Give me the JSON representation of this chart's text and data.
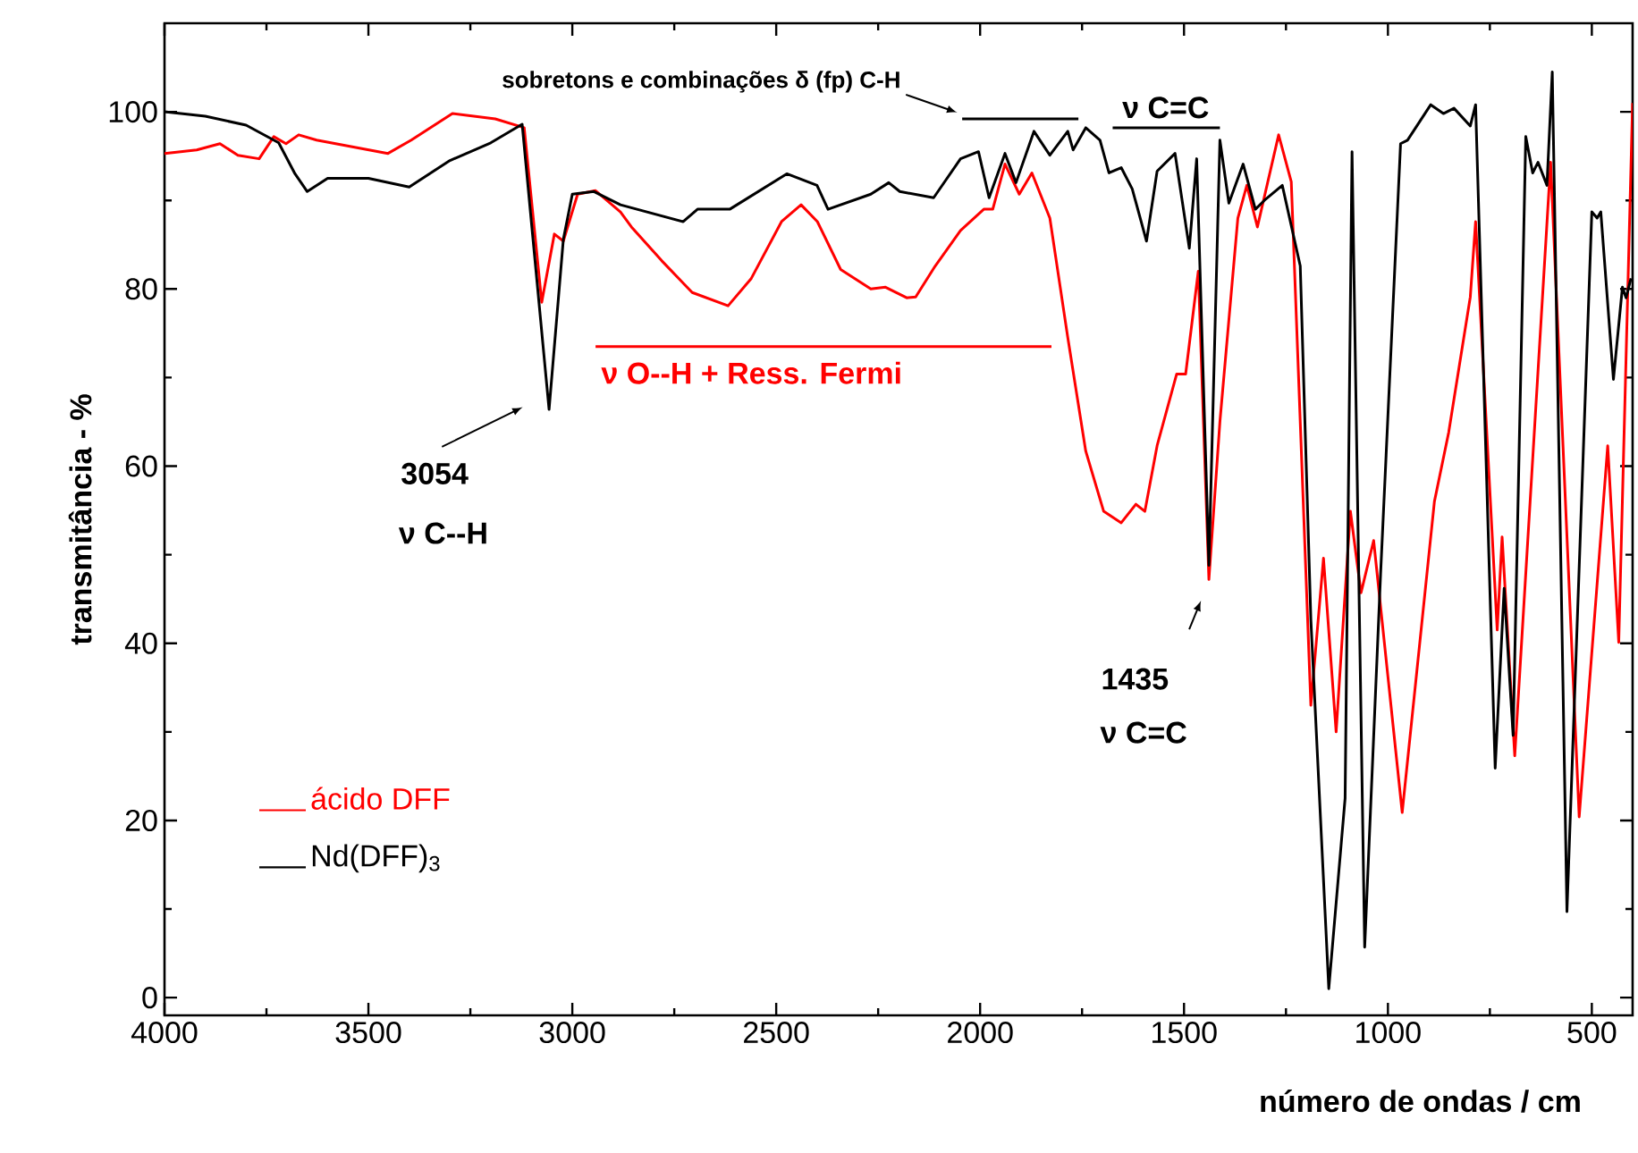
{
  "chart_data": {
    "type": "line",
    "xlabel": "número de ondas / cm",
    "ylabel": "transmitância - %",
    "xlim": [
      4000,
      400
    ],
    "ylim": [
      -2,
      110
    ],
    "xticks": [
      4000,
      3500,
      3000,
      2500,
      2000,
      1500,
      1000,
      500
    ],
    "yticks": [
      0,
      20,
      40,
      60,
      80,
      100
    ],
    "legend": "bottom left",
    "marker": "none",
    "line_style": "solid",
    "grid": false,
    "series": [
      {
        "name": "ácido DFF",
        "color": "#ff0000",
        "x": [
          4000,
          3921,
          3864,
          3820,
          3768,
          3732,
          3702,
          3671,
          3627,
          3452,
          3395,
          3294,
          3189,
          3118,
          3075,
          3044,
          3022,
          2987,
          2943,
          2882,
          2855,
          2781,
          2706,
          2618,
          2561,
          2487,
          2439,
          2399,
          2342,
          2268,
          2232,
          2180,
          2158,
          2110,
          2048,
          1991,
          1969,
          1939,
          1904,
          1873,
          1829,
          1785,
          1741,
          1697,
          1654,
          1618,
          1596,
          1566,
          1518,
          1496,
          1465,
          1439,
          1412,
          1368,
          1346,
          1320,
          1268,
          1237,
          1189,
          1158,
          1127,
          1092,
          1066,
          1035,
          965,
          886,
          851,
          798,
          785,
          732,
          720,
          689,
          601,
          531,
          461,
          434,
          400
        ],
        "values": [
          95.3,
          95.7,
          96.4,
          95.1,
          94.7,
          97.2,
          96.4,
          97.4,
          96.8,
          95.3,
          96.8,
          99.8,
          99.2,
          98.2,
          78.5,
          86.2,
          85.4,
          90.7,
          91.1,
          88.7,
          87,
          83.2,
          79.6,
          78.1,
          81.2,
          87.6,
          89.5,
          87.6,
          82.2,
          80,
          80.2,
          79,
          79.1,
          82.6,
          86.6,
          89,
          89,
          94.1,
          90.7,
          93.1,
          88,
          74.5,
          61.7,
          54.9,
          53.6,
          55.7,
          54.9,
          62.3,
          70.4,
          70.4,
          82,
          47.2,
          65,
          88,
          91.7,
          87,
          97.4,
          92.1,
          33,
          49.6,
          30,
          54.9,
          45.7,
          51.6,
          20.9,
          56,
          63.8,
          79.1,
          87.6,
          41.5,
          52,
          27.3,
          94.3,
          20.4,
          62.3,
          40.1,
          101
        ]
      },
      {
        "type": "line",
        "color": "#000000",
        "x": [
          2044,
          1759
        ],
        "values": [
          99.2,
          99.2
        ]
      },
      {
        "type": "line",
        "color": "#000000",
        "x": [
          1675,
          1412
        ],
        "values": [
          98.2,
          98.2
        ]
      },
      {
        "type": "line",
        "color": "#ff0000",
        "x": [
          2943,
          1825
        ],
        "values": [
          73.5,
          73.5
        ]
      },
      {
        "name": "Nd(DFF)$_{3}$",
        "color": "#000000",
        "x": [
          4000,
          3900,
          3800,
          3720,
          3680,
          3650,
          3600,
          3500,
          3400,
          3300,
          3200,
          3123,
          3057,
          3022,
          3000,
          2947,
          2882,
          2728,
          2693,
          2614,
          2474,
          2400,
          2373,
          2268,
          2224,
          2197,
          2114,
          2048,
          2004,
          1978,
          1939,
          1912,
          1868,
          1829,
          1785,
          1772,
          1741,
          1706,
          1684,
          1654,
          1627,
          1592,
          1566,
          1522,
          1487,
          1469,
          1439,
          1412,
          1390,
          1355,
          1325,
          1303,
          1259,
          1215,
          1189,
          1145,
          1105,
          1088,
          1057,
          1018,
          969,
          952,
          895,
          864,
          838,
          798,
          785,
          737,
          715,
          693,
          662,
          645,
          632,
          610,
          597,
          561,
          500,
          487,
          478,
          447,
          425,
          416,
          404
        ],
        "values": [
          100,
          99.5,
          98.5,
          96.5,
          93,
          91,
          92.5,
          92.5,
          91.5,
          94.5,
          96.5,
          98.6,
          66.4,
          85.6,
          90.7,
          91,
          89.5,
          87.6,
          89,
          89,
          93,
          91.7,
          89,
          90.7,
          92,
          91,
          90.3,
          94.7,
          95.5,
          90.3,
          95.3,
          92,
          97.8,
          95.1,
          97.8,
          95.7,
          98.2,
          96.8,
          93.1,
          93.7,
          91.3,
          85.4,
          93.3,
          95.3,
          84.6,
          94.7,
          48.8,
          96.8,
          89.7,
          94.1,
          89,
          90,
          91.7,
          82.6,
          42.7,
          1,
          22.5,
          95.5,
          5.7,
          47.8,
          96.4,
          96.8,
          100.8,
          99.8,
          100.4,
          98.4,
          100.8,
          25.9,
          46.2,
          29.6,
          97.2,
          93.1,
          94.3,
          91.7,
          104.5,
          9.7,
          88.7,
          88,
          88.7,
          69.8,
          80.2,
          79,
          81.2
        ]
      }
    ],
    "annotations": [
      "sobretons e combinações δ (fp) C-H",
      "ν C=C",
      "ν O--H + Ress. Fermi",
      "3054",
      "ν C--H",
      "1435",
      "ν C=C"
    ]
  }
}
